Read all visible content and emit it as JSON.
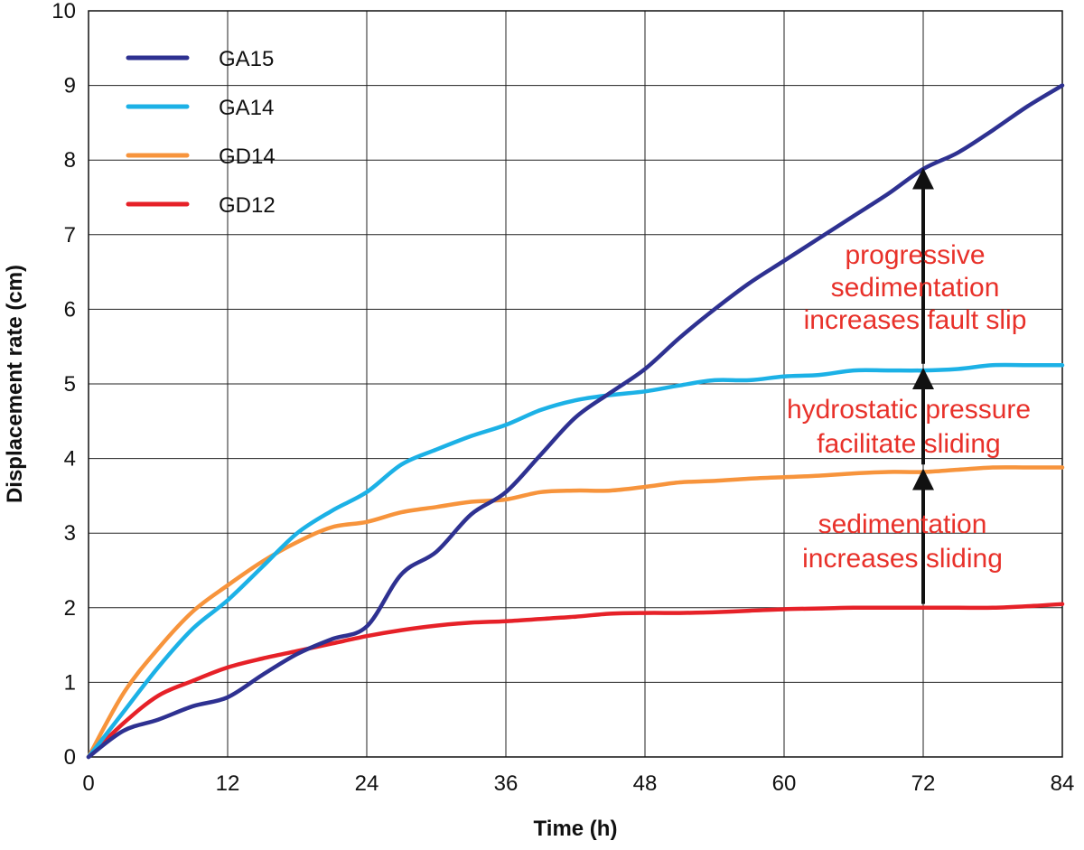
{
  "chart_data": {
    "type": "line",
    "title": "",
    "xlabel": "Time (h)",
    "ylabel": "Displacement rate (cm)",
    "xlim": [
      0,
      84
    ],
    "ylim": [
      0,
      10
    ],
    "xticks": [
      0,
      12,
      24,
      36,
      48,
      60,
      72,
      84
    ],
    "yticks": [
      0,
      1,
      2,
      3,
      4,
      5,
      6,
      7,
      8,
      9,
      10
    ],
    "grid": true,
    "legend_position": "top-left",
    "series": [
      {
        "name": "GA15",
        "color": "#2e3191",
        "x": [
          0,
          3,
          6,
          9,
          12,
          15,
          18,
          21,
          24,
          27,
          30,
          33,
          36,
          39,
          42,
          45,
          48,
          51,
          54,
          57,
          60,
          63,
          66,
          69,
          72,
          75,
          78,
          81,
          84
        ],
        "y": [
          0,
          0.35,
          0.5,
          0.68,
          0.8,
          1.1,
          1.38,
          1.58,
          1.75,
          2.45,
          2.75,
          3.25,
          3.55,
          4.05,
          4.55,
          4.88,
          5.2,
          5.62,
          6.0,
          6.35,
          6.65,
          6.95,
          7.25,
          7.55,
          7.88,
          8.1,
          8.4,
          8.72,
          9.0
        ]
      },
      {
        "name": "GA14",
        "color": "#1cb1e6",
        "x": [
          0,
          3,
          6,
          9,
          12,
          15,
          18,
          21,
          24,
          27,
          30,
          33,
          36,
          39,
          42,
          45,
          48,
          51,
          54,
          57,
          60,
          63,
          66,
          69,
          72,
          75,
          78,
          81,
          84
        ],
        "y": [
          0,
          0.6,
          1.2,
          1.72,
          2.1,
          2.55,
          3.0,
          3.3,
          3.55,
          3.92,
          4.12,
          4.3,
          4.45,
          4.65,
          4.78,
          4.85,
          4.9,
          4.98,
          5.05,
          5.05,
          5.1,
          5.12,
          5.18,
          5.18,
          5.18,
          5.2,
          5.25,
          5.25,
          5.25
        ]
      },
      {
        "name": "GD14",
        "color": "#f7943c",
        "x": [
          0,
          3,
          6,
          9,
          12,
          15,
          18,
          21,
          24,
          27,
          30,
          33,
          36,
          39,
          42,
          45,
          48,
          51,
          54,
          57,
          60,
          63,
          66,
          69,
          72,
          75,
          78,
          81,
          84
        ],
        "y": [
          0,
          0.85,
          1.45,
          1.95,
          2.3,
          2.62,
          2.88,
          3.08,
          3.15,
          3.28,
          3.35,
          3.42,
          3.45,
          3.55,
          3.57,
          3.57,
          3.62,
          3.68,
          3.7,
          3.73,
          3.75,
          3.77,
          3.8,
          3.82,
          3.82,
          3.85,
          3.88,
          3.88,
          3.88
        ]
      },
      {
        "name": "GD12",
        "color": "#e62128",
        "x": [
          0,
          3,
          6,
          9,
          12,
          15,
          18,
          21,
          24,
          27,
          30,
          33,
          36,
          39,
          42,
          45,
          48,
          51,
          54,
          57,
          60,
          63,
          66,
          69,
          72,
          75,
          78,
          81,
          84
        ],
        "y": [
          0,
          0.45,
          0.82,
          1.02,
          1.2,
          1.32,
          1.42,
          1.52,
          1.62,
          1.7,
          1.76,
          1.8,
          1.82,
          1.85,
          1.88,
          1.92,
          1.93,
          1.93,
          1.94,
          1.96,
          1.98,
          1.99,
          2.0,
          2.0,
          2.0,
          2.0,
          2.0,
          2.02,
          2.05
        ]
      }
    ],
    "annotations": [
      {
        "lines": [
          "progressive",
          "sedimentation",
          "increases fault slip"
        ]
      },
      {
        "lines": [
          "hydrostatic pressure",
          "facilitate sliding"
        ]
      },
      {
        "lines": [
          "sedimentation",
          "increases sliding"
        ]
      }
    ],
    "arrows": [
      {
        "x": 72,
        "y_from": 2.05,
        "y_to": 3.82
      },
      {
        "x": 72,
        "y_from": 3.92,
        "y_to": 5.17
      },
      {
        "x": 72,
        "y_from": 5.27,
        "y_to": 7.85
      }
    ]
  }
}
